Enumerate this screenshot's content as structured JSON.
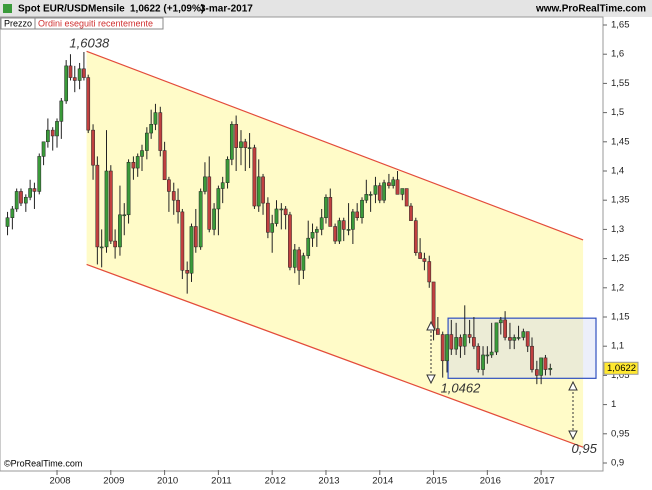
{
  "chart_data": {
    "type": "candlestick",
    "header": {
      "symbol": "Spot EUR/USD",
      "period": "Mensile",
      "price": "1,0622 (+1,09%)",
      "date": "3-mar-2017",
      "site": "www.ProRealTime.com"
    },
    "legend": [
      "Prezzo",
      "Ordini eseguiti recentemente"
    ],
    "copyright": "©ProRealTime.com",
    "last_price": {
      "value": 1.0622,
      "label": "1,0622"
    },
    "up_color": "#3a9a3a",
    "down_color": "#c04040",
    "channel_color": "#e34b3a",
    "channel_fill": "#fffbc8",
    "box_color": "#3050c0",
    "annotations": [
      {
        "label": "1,6038",
        "x": 2008.6,
        "y": 1.617
      },
      {
        "label": "1,0462",
        "x": 2015.5,
        "y": 1.027
      },
      {
        "label": "0,95",
        "x": 2017.8,
        "y": 0.923
      }
    ],
    "channel": {
      "upper": [
        [
          2008.55,
          1.605
        ],
        [
          2017.78,
          1.282
        ]
      ],
      "lower": [
        [
          2008.55,
          1.24
        ],
        [
          2017.78,
          0.927
        ]
      ]
    },
    "box": {
      "x": [
        2015.27,
        2018.02
      ],
      "y": [
        1.045,
        1.148
      ]
    },
    "xlim": [
      2006.94,
      2018.15
    ],
    "xticks": [
      2008,
      2009,
      2010,
      2011,
      2012,
      2013,
      2014,
      2015,
      2016,
      2017
    ],
    "ylim": [
      0.888,
      1.662
    ],
    "yticks": [
      {
        "value": 0.9,
        "label": "0,9"
      },
      {
        "value": 0.95,
        "label": "0,95"
      },
      1,
      {
        "value": 1.05,
        "label": "1,05"
      },
      {
        "value": 1.1,
        "label": "1,1"
      },
      {
        "value": 1.15,
        "label": "1,15"
      },
      {
        "value": 1.2,
        "label": "1,2"
      },
      {
        "value": 1.25,
        "label": "1,25"
      },
      {
        "value": 1.3,
        "label": "1,3"
      },
      {
        "value": 1.35,
        "label": "1,35"
      },
      {
        "value": 1.4,
        "label": "1,4"
      },
      {
        "value": 1.45,
        "label": "1,45"
      },
      {
        "value": 1.5,
        "label": "1,5"
      },
      {
        "value": 1.55,
        "label": "1,55"
      },
      {
        "value": 1.6,
        "label": "1,6"
      },
      {
        "value": 1.65,
        "label": "1,65"
      }
    ],
    "x": [
      2007.08,
      2007.17,
      2007.25,
      2007.33,
      2007.42,
      2007.5,
      2007.58,
      2007.67,
      2007.75,
      2007.83,
      2007.92,
      2008.0,
      2008.08,
      2008.17,
      2008.25,
      2008.33,
      2008.42,
      2008.5,
      2008.58,
      2008.67,
      2008.75,
      2008.83,
      2008.92,
      2009.0,
      2009.08,
      2009.17,
      2009.25,
      2009.33,
      2009.42,
      2009.5,
      2009.58,
      2009.67,
      2009.75,
      2009.83,
      2009.92,
      2010.0,
      2010.08,
      2010.17,
      2010.25,
      2010.33,
      2010.42,
      2010.5,
      2010.58,
      2010.67,
      2010.75,
      2010.83,
      2010.92,
      2011.0,
      2011.08,
      2011.17,
      2011.25,
      2011.33,
      2011.42,
      2011.5,
      2011.58,
      2011.67,
      2011.75,
      2011.83,
      2011.92,
      2012.0,
      2012.08,
      2012.17,
      2012.25,
      2012.33,
      2012.42,
      2012.5,
      2012.58,
      2012.67,
      2012.75,
      2012.83,
      2012.92,
      2013.0,
      2013.08,
      2013.17,
      2013.25,
      2013.33,
      2013.42,
      2013.5,
      2013.58,
      2013.67,
      2013.75,
      2013.83,
      2013.92,
      2014.0,
      2014.08,
      2014.17,
      2014.25,
      2014.33,
      2014.42,
      2014.5,
      2014.58,
      2014.67,
      2014.75,
      2014.83,
      2014.92,
      2015.0,
      2015.08,
      2015.17,
      2015.25,
      2015.33,
      2015.42,
      2015.5,
      2015.58,
      2015.67,
      2015.75,
      2015.83,
      2015.92,
      2016.0,
      2016.08,
      2016.17,
      2016.25,
      2016.33,
      2016.42,
      2016.5,
      2016.58,
      2016.67,
      2016.75,
      2016.83,
      2016.92,
      2017.0,
      2017.08,
      2017.17
    ],
    "ohlc": [
      [
        1.305,
        1.33,
        1.29,
        1.32
      ],
      [
        1.32,
        1.34,
        1.3,
        1.335
      ],
      [
        1.335,
        1.37,
        1.33,
        1.365
      ],
      [
        1.365,
        1.37,
        1.34,
        1.345
      ],
      [
        1.345,
        1.36,
        1.33,
        1.355
      ],
      [
        1.355,
        1.385,
        1.35,
        1.37
      ],
      [
        1.37,
        1.38,
        1.335,
        1.365
      ],
      [
        1.365,
        1.43,
        1.36,
        1.425
      ],
      [
        1.425,
        1.45,
        1.41,
        1.45
      ],
      [
        1.45,
        1.49,
        1.44,
        1.47
      ],
      [
        1.47,
        1.475,
        1.435,
        1.46
      ],
      [
        1.46,
        1.49,
        1.44,
        1.485
      ],
      [
        1.485,
        1.525,
        1.455,
        1.52
      ],
      [
        1.52,
        1.59,
        1.515,
        1.58
      ],
      [
        1.58,
        1.6,
        1.555,
        1.56
      ],
      [
        1.56,
        1.58,
        1.535,
        1.555
      ],
      [
        1.555,
        1.585,
        1.54,
        1.575
      ],
      [
        1.575,
        1.6038,
        1.555,
        1.56
      ],
      [
        1.56,
        1.565,
        1.465,
        1.47
      ],
      [
        1.47,
        1.48,
        1.385,
        1.41
      ],
      [
        1.41,
        1.425,
        1.24,
        1.27
      ],
      [
        1.27,
        1.3,
        1.235,
        1.27
      ],
      [
        1.27,
        1.47,
        1.26,
        1.4
      ],
      [
        1.4,
        1.41,
        1.275,
        1.28
      ],
      [
        1.28,
        1.3,
        1.25,
        1.27
      ],
      [
        1.27,
        1.375,
        1.255,
        1.325
      ],
      [
        1.325,
        1.345,
        1.29,
        1.325
      ],
      [
        1.325,
        1.42,
        1.31,
        1.415
      ],
      [
        1.415,
        1.425,
        1.385,
        1.405
      ],
      [
        1.405,
        1.43,
        1.39,
        1.425
      ],
      [
        1.425,
        1.445,
        1.4,
        1.435
      ],
      [
        1.435,
        1.475,
        1.42,
        1.465
      ],
      [
        1.465,
        1.505,
        1.455,
        1.48
      ],
      [
        1.48,
        1.515,
        1.47,
        1.5
      ],
      [
        1.5,
        1.51,
        1.425,
        1.435
      ],
      [
        1.435,
        1.45,
        1.385,
        1.385
      ],
      [
        1.385,
        1.39,
        1.33,
        1.365
      ],
      [
        1.365,
        1.38,
        1.325,
        1.35
      ],
      [
        1.35,
        1.37,
        1.31,
        1.33
      ],
      [
        1.33,
        1.335,
        1.215,
        1.23
      ],
      [
        1.23,
        1.245,
        1.19,
        1.225
      ],
      [
        1.225,
        1.31,
        1.21,
        1.305
      ],
      [
        1.305,
        1.335,
        1.26,
        1.27
      ],
      [
        1.27,
        1.37,
        1.265,
        1.365
      ],
      [
        1.365,
        1.415,
        1.36,
        1.39
      ],
      [
        1.39,
        1.425,
        1.295,
        1.3
      ],
      [
        1.3,
        1.345,
        1.29,
        1.335
      ],
      [
        1.335,
        1.375,
        1.29,
        1.37
      ],
      [
        1.37,
        1.39,
        1.345,
        1.38
      ],
      [
        1.38,
        1.425,
        1.37,
        1.42
      ],
      [
        1.42,
        1.485,
        1.41,
        1.48
      ],
      [
        1.48,
        1.495,
        1.4,
        1.44
      ],
      [
        1.44,
        1.47,
        1.41,
        1.45
      ],
      [
        1.45,
        1.455,
        1.4,
        1.44
      ],
      [
        1.44,
        1.465,
        1.405,
        1.44
      ],
      [
        1.44,
        1.445,
        1.335,
        1.34
      ],
      [
        1.34,
        1.42,
        1.33,
        1.39
      ],
      [
        1.39,
        1.395,
        1.325,
        1.345
      ],
      [
        1.345,
        1.355,
        1.285,
        1.295
      ],
      [
        1.295,
        1.325,
        1.26,
        1.31
      ],
      [
        1.31,
        1.35,
        1.305,
        1.335
      ],
      [
        1.335,
        1.345,
        1.3,
        1.335
      ],
      [
        1.335,
        1.34,
        1.3,
        1.325
      ],
      [
        1.325,
        1.33,
        1.23,
        1.235
      ],
      [
        1.235,
        1.275,
        1.225,
        1.265
      ],
      [
        1.265,
        1.27,
        1.205,
        1.23
      ],
      [
        1.23,
        1.26,
        1.215,
        1.255
      ],
      [
        1.255,
        1.315,
        1.25,
        1.285
      ],
      [
        1.285,
        1.31,
        1.27,
        1.295
      ],
      [
        1.295,
        1.305,
        1.27,
        1.3
      ],
      [
        1.3,
        1.335,
        1.29,
        1.32
      ],
      [
        1.32,
        1.36,
        1.31,
        1.355
      ],
      [
        1.355,
        1.37,
        1.305,
        1.305
      ],
      [
        1.305,
        1.31,
        1.275,
        1.28
      ],
      [
        1.28,
        1.32,
        1.275,
        1.315
      ],
      [
        1.315,
        1.32,
        1.28,
        1.3
      ],
      [
        1.3,
        1.345,
        1.29,
        1.3
      ],
      [
        1.3,
        1.335,
        1.275,
        1.33
      ],
      [
        1.33,
        1.345,
        1.315,
        1.32
      ],
      [
        1.32,
        1.355,
        1.31,
        1.35
      ],
      [
        1.35,
        1.385,
        1.345,
        1.36
      ],
      [
        1.36,
        1.365,
        1.33,
        1.36
      ],
      [
        1.36,
        1.39,
        1.345,
        1.375
      ],
      [
        1.375,
        1.38,
        1.345,
        1.35
      ],
      [
        1.35,
        1.385,
        1.345,
        1.38
      ],
      [
        1.38,
        1.395,
        1.37,
        1.375
      ],
      [
        1.375,
        1.39,
        1.37,
        1.385
      ],
      [
        1.385,
        1.4,
        1.36,
        1.36
      ],
      [
        1.36,
        1.37,
        1.35,
        1.37
      ],
      [
        1.37,
        1.37,
        1.34,
        1.34
      ],
      [
        1.34,
        1.345,
        1.315,
        1.315
      ],
      [
        1.315,
        1.32,
        1.255,
        1.26
      ],
      [
        1.26,
        1.285,
        1.25,
        1.25
      ],
      [
        1.25,
        1.26,
        1.23,
        1.245
      ],
      [
        1.245,
        1.255,
        1.2,
        1.21
      ],
      [
        1.21,
        1.21,
        1.11,
        1.13
      ],
      [
        1.13,
        1.15,
        1.12,
        1.12
      ],
      [
        1.12,
        1.125,
        1.0462,
        1.075
      ],
      [
        1.075,
        1.12,
        1.055,
        1.12
      ],
      [
        1.12,
        1.145,
        1.085,
        1.095
      ],
      [
        1.095,
        1.14,
        1.085,
        1.115
      ],
      [
        1.115,
        1.12,
        1.08,
        1.1
      ],
      [
        1.1,
        1.17,
        1.085,
        1.12
      ],
      [
        1.12,
        1.145,
        1.105,
        1.115
      ],
      [
        1.115,
        1.15,
        1.095,
        1.1
      ],
      [
        1.1,
        1.105,
        1.055,
        1.06
      ],
      [
        1.06,
        1.1,
        1.05,
        1.085
      ],
      [
        1.085,
        1.1,
        1.07,
        1.085
      ],
      [
        1.085,
        1.14,
        1.08,
        1.09
      ],
      [
        1.09,
        1.14,
        1.085,
        1.14
      ],
      [
        1.14,
        1.15,
        1.12,
        1.145
      ],
      [
        1.145,
        1.16,
        1.11,
        1.115
      ],
      [
        1.115,
        1.14,
        1.095,
        1.11
      ],
      [
        1.11,
        1.12,
        1.095,
        1.115
      ],
      [
        1.115,
        1.135,
        1.11,
        1.115
      ],
      [
        1.115,
        1.13,
        1.11,
        1.125
      ],
      [
        1.125,
        1.125,
        1.09,
        1.1
      ],
      [
        1.1,
        1.115,
        1.055,
        1.06
      ],
      [
        1.06,
        1.075,
        1.035,
        1.05
      ],
      [
        1.05,
        1.08,
        1.035,
        1.08
      ],
      [
        1.08,
        1.085,
        1.05,
        1.06
      ],
      [
        1.06,
        1.07,
        1.05,
        1.0622
      ]
    ]
  }
}
